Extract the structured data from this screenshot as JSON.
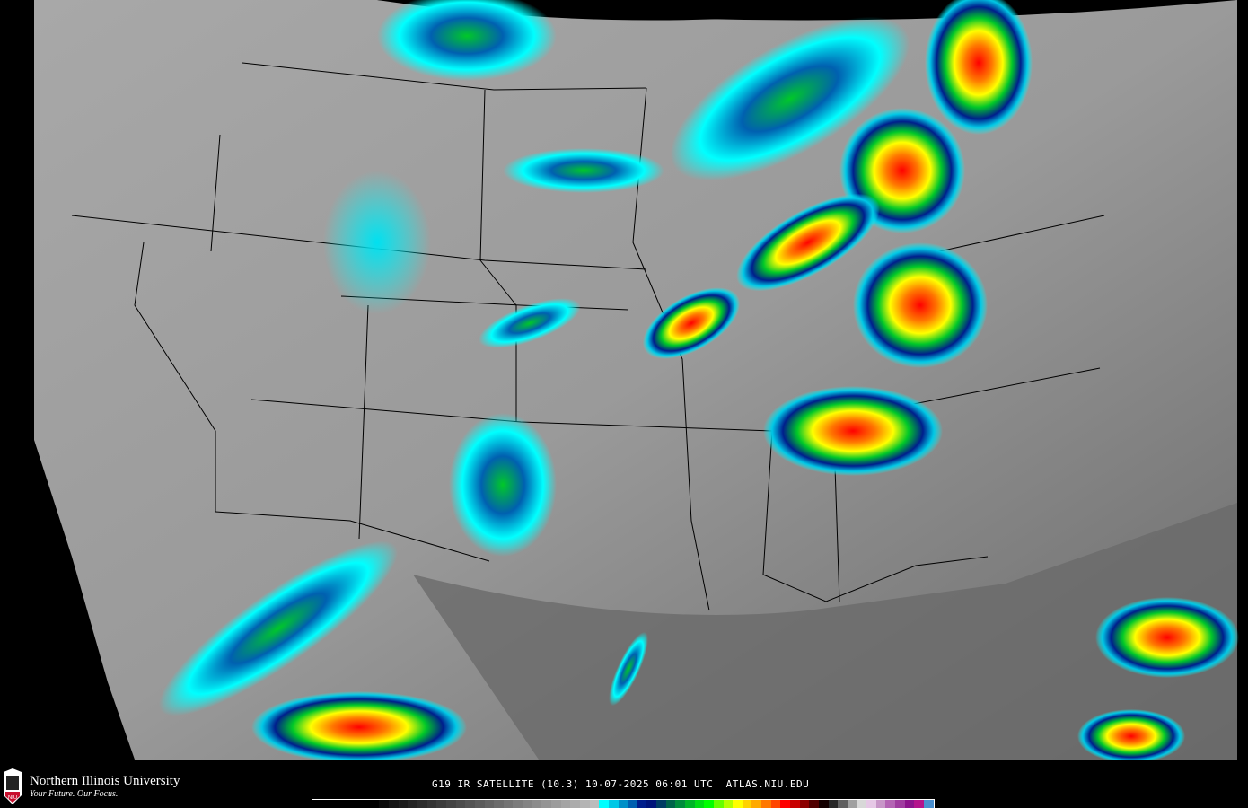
{
  "product": {
    "caption": "G19 IR SATELLITE (10.3) 10-07-2025 06:01 UTC  ATLAS.NIU.EDU"
  },
  "branding": {
    "name": "Northern Illinois University",
    "tagline": "Your Future. Our Focus.",
    "logo_text": "NIU",
    "brand_color": "#c8102e"
  },
  "colorbar": {
    "colors": [
      "#000000",
      "#000000",
      "#000000",
      "#000000",
      "#000000",
      "#000000",
      "#000000",
      "#0a0a0a",
      "#141414",
      "#1c1c1c",
      "#242424",
      "#2c2c2c",
      "#343434",
      "#3c3c3c",
      "#444444",
      "#4c4c4c",
      "#545454",
      "#5c5c5c",
      "#646464",
      "#6c6c6c",
      "#747474",
      "#7c7c7c",
      "#848484",
      "#8c8c8c",
      "#949494",
      "#9c9c9c",
      "#a4a4a4",
      "#acacac",
      "#b4b4b4",
      "#bcbcbc",
      "#00ffff",
      "#00c8e6",
      "#0090c8",
      "#0060b0",
      "#001e8c",
      "#00147a",
      "#003c64",
      "#00644a",
      "#008c3c",
      "#00b428",
      "#00dc14",
      "#00ff00",
      "#64ff00",
      "#b4ff00",
      "#ffff00",
      "#ffd200",
      "#ffaa00",
      "#ff7800",
      "#ff4600",
      "#ff0000",
      "#c80000",
      "#8c0000",
      "#500000",
      "#140000",
      "#282828",
      "#606060",
      "#a0a0a0",
      "#d8d8d8",
      "#e6c8e6",
      "#c896c8",
      "#b464b4",
      "#a03ca0",
      "#8c148c",
      "#b4148c",
      "#4a90d0"
    ]
  },
  "map": {
    "background": "#000000",
    "land_gray": "#9a9a9a",
    "ocean_gray": "#6e6e6e",
    "border_color": "#000000"
  }
}
